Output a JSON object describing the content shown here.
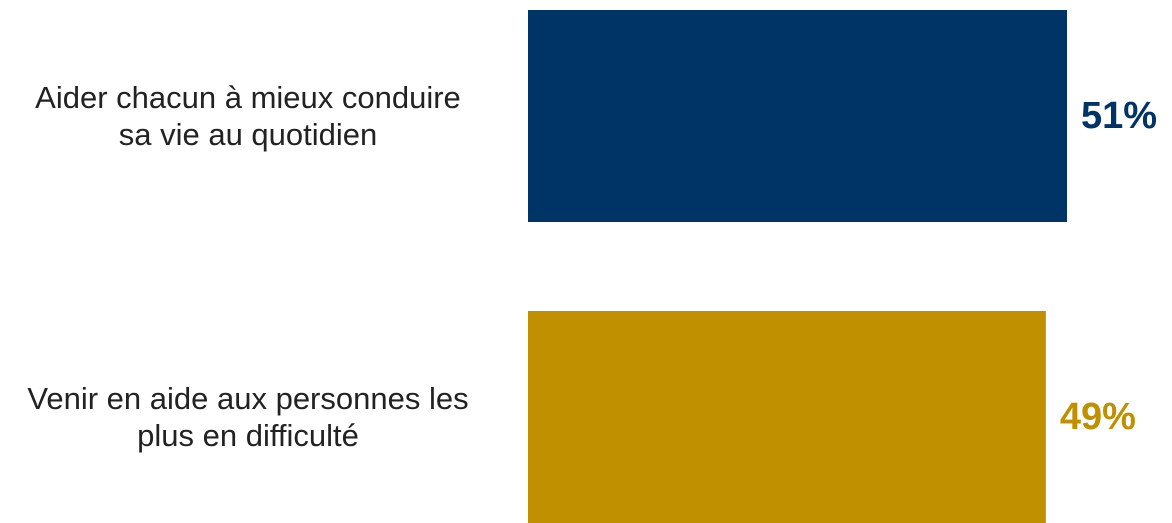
{
  "chart_data": {
    "type": "bar",
    "orientation": "horizontal",
    "categories": [
      [
        "Aider chacun à mieux conduire",
        "sa vie au quotidien"
      ],
      [
        "Venir en aide aux personnes les",
        "plus en difficulté"
      ]
    ],
    "values": [
      51,
      49
    ],
    "value_labels": [
      "51%",
      "49%"
    ],
    "colors": [
      "#003366",
      "#C09000"
    ],
    "title": "",
    "xlabel": "",
    "ylabel": "",
    "grid": false,
    "legend": "none"
  }
}
